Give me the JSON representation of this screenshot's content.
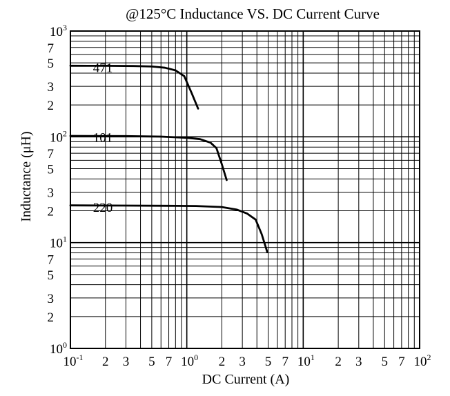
{
  "chart_data": {
    "type": "line",
    "title": "@125°C Inductance VS. DC Current Curve",
    "xlabel": "DC Current (A)",
    "ylabel": "Inductance (μH)",
    "x_scale": "log",
    "y_scale": "log",
    "xlim": [
      0.1,
      100
    ],
    "ylim": [
      1,
      1000
    ],
    "grid": true,
    "x_ticks": [
      {
        "value": 0.1,
        "base": "10",
        "exp": "-1"
      },
      {
        "value": 0.2,
        "label": "2"
      },
      {
        "value": 0.3,
        "label": "3"
      },
      {
        "value": 0.5,
        "label": "5"
      },
      {
        "value": 0.7,
        "label": "7"
      },
      {
        "value": 1,
        "base": "10",
        "exp": "0"
      },
      {
        "value": 2,
        "label": "2"
      },
      {
        "value": 3,
        "label": "3"
      },
      {
        "value": 5,
        "label": "5"
      },
      {
        "value": 7,
        "label": "7"
      },
      {
        "value": 10,
        "base": "10",
        "exp": "1"
      },
      {
        "value": 20,
        "label": "2"
      },
      {
        "value": 30,
        "label": "3"
      },
      {
        "value": 50,
        "label": "5"
      },
      {
        "value": 70,
        "label": "7"
      },
      {
        "value": 100,
        "base": "10",
        "exp": "2"
      }
    ],
    "y_ticks": [
      {
        "value": 1,
        "base": "10",
        "exp": "0"
      },
      {
        "value": 2,
        "label": "2"
      },
      {
        "value": 3,
        "label": "3"
      },
      {
        "value": 5,
        "label": "5"
      },
      {
        "value": 7,
        "label": "7"
      },
      {
        "value": 10,
        "base": "10",
        "exp": "1"
      },
      {
        "value": 20,
        "label": "2"
      },
      {
        "value": 30,
        "label": "3"
      },
      {
        "value": 50,
        "label": "5"
      },
      {
        "value": 70,
        "label": "7"
      },
      {
        "value": 100,
        "base": "10",
        "exp": "2"
      },
      {
        "value": 200,
        "label": "2"
      },
      {
        "value": 300,
        "label": "3"
      },
      {
        "value": 500,
        "label": "5"
      },
      {
        "value": 700,
        "label": "7"
      },
      {
        "value": 1000,
        "base": "10",
        "exp": "3"
      }
    ],
    "series": [
      {
        "name": "471",
        "label_at": [
          0.19,
          408
        ],
        "x": [
          0.1,
          0.2,
          0.35,
          0.5,
          0.65,
          0.8,
          0.95,
          1.1,
          1.25
        ],
        "y": [
          470,
          469,
          467,
          462,
          450,
          425,
          375,
          260,
          185
        ]
      },
      {
        "name": "101",
        "label_at": [
          0.19,
          90
        ],
        "x": [
          0.1,
          0.3,
          0.6,
          1.0,
          1.3,
          1.6,
          1.8,
          2.0,
          2.2
        ],
        "y": [
          102,
          101.5,
          100.5,
          98,
          95,
          88,
          78,
          55,
          39
        ]
      },
      {
        "name": "220",
        "label_at": [
          0.19,
          19.5
        ],
        "x": [
          0.1,
          0.3,
          0.7,
          1.2,
          2.0,
          2.7,
          3.3,
          3.9,
          4.4,
          4.9
        ],
        "y": [
          22.5,
          22.4,
          22.3,
          22.2,
          21.7,
          20.5,
          18.8,
          16.5,
          12.0,
          8.2
        ]
      }
    ],
    "colors": {
      "line": "#000000",
      "grid": "#000000",
      "background": "#ffffff"
    }
  }
}
